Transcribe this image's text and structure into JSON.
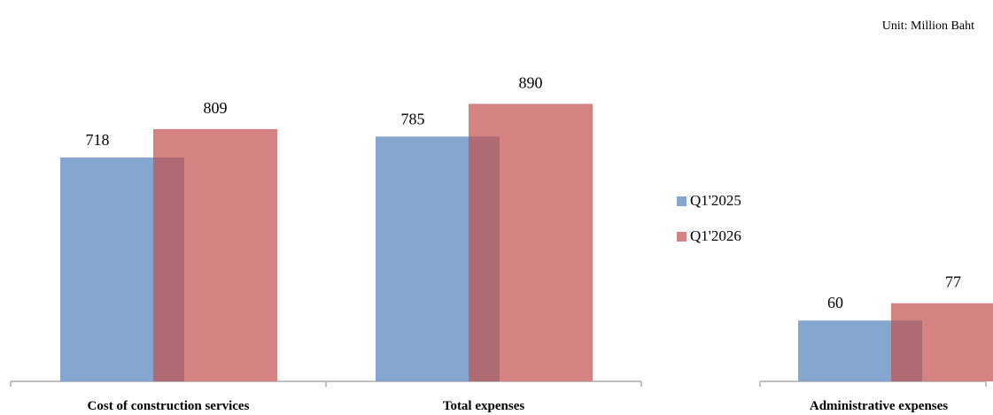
{
  "unit_label": "Unit: Million Baht",
  "legend": {
    "items": [
      {
        "label": "Q1'2025",
        "color": "#85A6CF"
      },
      {
        "label": "Q1'2026",
        "color": "#D48282"
      }
    ]
  },
  "colors": {
    "q1_2025": "#85A6CF",
    "q1_2026": "#D48282",
    "overlap": "#AE6B74",
    "axis": "#BFBFBF"
  },
  "chart_data": [
    {
      "type": "bar",
      "categories": [
        "Cost of construction services",
        "Total expenses"
      ],
      "series": [
        {
          "name": "Q1'2025",
          "values": [
            718,
            785
          ]
        },
        {
          "name": "Q1'2026",
          "values": [
            809,
            890
          ]
        }
      ],
      "ylim": [
        0,
        1000
      ],
      "grid": false
    },
    {
      "type": "bar",
      "categories": [
        "Administrative expenses"
      ],
      "series": [
        {
          "name": "Q1'2025",
          "values": [
            60
          ]
        },
        {
          "name": "Q1'2026",
          "values": [
            77
          ]
        }
      ],
      "ylim": [
        0,
        300
      ],
      "grid": false
    }
  ]
}
